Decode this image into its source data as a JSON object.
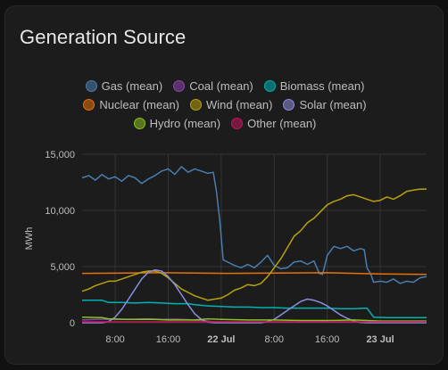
{
  "card": {
    "title": "Generation Source"
  },
  "chart_data": {
    "type": "line",
    "title": "Generation Source",
    "ylabel": "MWh",
    "ylim": [
      0,
      15000
    ],
    "xlim": [
      3.0,
      55.0
    ],
    "y_ticks": [
      {
        "value": 0,
        "label": "0"
      },
      {
        "value": 5000,
        "label": "5,000"
      },
      {
        "value": 10000,
        "label": "10,000"
      },
      {
        "value": 15000,
        "label": "15,000"
      }
    ],
    "x_ticks": [
      {
        "value": 8,
        "label": "8:00",
        "bold": false
      },
      {
        "value": 16,
        "label": "16:00",
        "bold": false
      },
      {
        "value": 24,
        "label": "22 Jul",
        "bold": true
      },
      {
        "value": 32,
        "label": "8:00",
        "bold": false
      },
      {
        "value": 40,
        "label": "16:00",
        "bold": false
      },
      {
        "value": 48,
        "label": "23 Jul",
        "bold": true
      }
    ],
    "series": [
      {
        "name": "Gas (mean)",
        "color": "#4a7db1",
        "points": [
          [
            3,
            12900
          ],
          [
            4,
            13100
          ],
          [
            5,
            12700
          ],
          [
            6,
            13200
          ],
          [
            7,
            12800
          ],
          [
            8,
            13000
          ],
          [
            9,
            12600
          ],
          [
            10,
            13100
          ],
          [
            11,
            12900
          ],
          [
            12,
            12400
          ],
          [
            13,
            12800
          ],
          [
            14,
            13100
          ],
          [
            15,
            13500
          ],
          [
            16,
            13700
          ],
          [
            17,
            13200
          ],
          [
            18,
            13900
          ],
          [
            19,
            13400
          ],
          [
            20,
            13700
          ],
          [
            21,
            13500
          ],
          [
            22,
            13300
          ],
          [
            22.8,
            13400
          ],
          [
            23.3,
            11600
          ],
          [
            23.8,
            9000
          ],
          [
            24.3,
            5600
          ],
          [
            25,
            5400
          ],
          [
            26,
            5100
          ],
          [
            27,
            4900
          ],
          [
            28,
            5200
          ],
          [
            29,
            4900
          ],
          [
            30,
            5400
          ],
          [
            31,
            6000
          ],
          [
            32,
            5100
          ],
          [
            33,
            4800
          ],
          [
            34,
            4900
          ],
          [
            35,
            5400
          ],
          [
            36,
            5500
          ],
          [
            37,
            5200
          ],
          [
            38,
            5500
          ],
          [
            38.8,
            4400
          ],
          [
            39.3,
            4300
          ],
          [
            40,
            6000
          ],
          [
            41,
            6800
          ],
          [
            42,
            6600
          ],
          [
            43,
            6800
          ],
          [
            44,
            6400
          ],
          [
            45,
            6600
          ],
          [
            45.6,
            6500
          ],
          [
            46,
            4900
          ],
          [
            46.6,
            4300
          ],
          [
            47,
            3600
          ],
          [
            48,
            3700
          ],
          [
            49,
            3600
          ],
          [
            50,
            3900
          ],
          [
            51,
            3500
          ],
          [
            52,
            3700
          ],
          [
            53,
            3600
          ],
          [
            54,
            4000
          ],
          [
            55,
            4100
          ]
        ]
      },
      {
        "name": "Coal (mean)",
        "color": "#8e44ad",
        "points": [
          [
            3,
            250
          ],
          [
            5,
            300
          ],
          [
            7,
            320
          ],
          [
            9,
            300
          ],
          [
            11,
            320
          ],
          [
            13,
            350
          ],
          [
            15,
            300
          ],
          [
            17,
            320
          ],
          [
            19,
            280
          ],
          [
            21,
            200
          ],
          [
            23,
            80
          ],
          [
            25,
            60
          ],
          [
            27,
            60
          ],
          [
            29,
            60
          ],
          [
            31,
            60
          ],
          [
            33,
            60
          ],
          [
            35,
            60
          ],
          [
            37,
            60
          ],
          [
            39,
            60
          ],
          [
            41,
            60
          ],
          [
            43,
            60
          ],
          [
            45,
            60
          ],
          [
            47,
            60
          ],
          [
            49,
            60
          ],
          [
            51,
            60
          ],
          [
            53,
            60
          ],
          [
            55,
            60
          ]
        ]
      },
      {
        "name": "Biomass (mean)",
        "color": "#00b2b3",
        "points": [
          [
            3,
            2000
          ],
          [
            6,
            2000
          ],
          [
            7,
            1800
          ],
          [
            9,
            1800
          ],
          [
            11,
            1750
          ],
          [
            13,
            1800
          ],
          [
            15,
            1750
          ],
          [
            17,
            1700
          ],
          [
            19,
            1700
          ],
          [
            20,
            1600
          ],
          [
            22,
            1500
          ],
          [
            24,
            1450
          ],
          [
            26,
            1400
          ],
          [
            28,
            1400
          ],
          [
            30,
            1350
          ],
          [
            32,
            1350
          ],
          [
            34,
            1300
          ],
          [
            36,
            1300
          ],
          [
            38,
            1300
          ],
          [
            40,
            1300
          ],
          [
            42,
            1250
          ],
          [
            44,
            1250
          ],
          [
            46,
            1300
          ],
          [
            47,
            500
          ],
          [
            49,
            450
          ],
          [
            51,
            450
          ],
          [
            53,
            450
          ],
          [
            55,
            450
          ]
        ]
      },
      {
        "name": "Nuclear (mean)",
        "color": "#e8710a",
        "points": [
          [
            3,
            4400
          ],
          [
            15,
            4450
          ],
          [
            25,
            4400
          ],
          [
            40,
            4450
          ],
          [
            48,
            4350
          ],
          [
            55,
            4300
          ]
        ]
      },
      {
        "name": "Wind (mean)",
        "color": "#b8a20b",
        "points": [
          [
            3,
            2800
          ],
          [
            4,
            3000
          ],
          [
            5,
            3300
          ],
          [
            6,
            3500
          ],
          [
            7,
            3700
          ],
          [
            8,
            3700
          ],
          [
            9,
            3900
          ],
          [
            10,
            4100
          ],
          [
            11,
            4300
          ],
          [
            12,
            4500
          ],
          [
            13,
            4600
          ],
          [
            14,
            4600
          ],
          [
            15,
            4400
          ],
          [
            16,
            4000
          ],
          [
            17,
            3500
          ],
          [
            18,
            3000
          ],
          [
            19,
            2700
          ],
          [
            20,
            2400
          ],
          [
            21,
            2200
          ],
          [
            22,
            2000
          ],
          [
            23,
            2100
          ],
          [
            24,
            2200
          ],
          [
            25,
            2500
          ],
          [
            26,
            2900
          ],
          [
            27,
            3100
          ],
          [
            28,
            3400
          ],
          [
            29,
            3300
          ],
          [
            30,
            3500
          ],
          [
            31,
            4100
          ],
          [
            32,
            4900
          ],
          [
            33,
            5700
          ],
          [
            34,
            6700
          ],
          [
            35,
            7700
          ],
          [
            36,
            8200
          ],
          [
            37,
            8900
          ],
          [
            38,
            9300
          ],
          [
            39,
            9900
          ],
          [
            40,
            10500
          ],
          [
            41,
            10800
          ],
          [
            42,
            11000
          ],
          [
            43,
            11300
          ],
          [
            44,
            11400
          ],
          [
            45,
            11200
          ],
          [
            46,
            11000
          ],
          [
            47,
            10800
          ],
          [
            48,
            10900
          ],
          [
            49,
            11200
          ],
          [
            50,
            11000
          ],
          [
            51,
            11300
          ],
          [
            52,
            11700
          ],
          [
            53,
            11800
          ],
          [
            54,
            11900
          ],
          [
            55,
            11900
          ]
        ]
      },
      {
        "name": "Solar (mean)",
        "color": "#8c8ee0",
        "points": [
          [
            3,
            0
          ],
          [
            6,
            0
          ],
          [
            7,
            100
          ],
          [
            8,
            500
          ],
          [
            9,
            1200
          ],
          [
            10,
            2100
          ],
          [
            11,
            3000
          ],
          [
            12,
            3900
          ],
          [
            13,
            4500
          ],
          [
            14,
            4700
          ],
          [
            15,
            4600
          ],
          [
            16,
            4100
          ],
          [
            17,
            3400
          ],
          [
            18,
            2500
          ],
          [
            19,
            1600
          ],
          [
            20,
            800
          ],
          [
            21,
            300
          ],
          [
            22,
            50
          ],
          [
            23,
            0
          ],
          [
            30,
            0
          ],
          [
            31,
            100
          ],
          [
            32,
            300
          ],
          [
            33,
            700
          ],
          [
            34,
            1100
          ],
          [
            35,
            1500
          ],
          [
            36,
            1900
          ],
          [
            37,
            2100
          ],
          [
            38,
            2000
          ],
          [
            39,
            1800
          ],
          [
            40,
            1500
          ],
          [
            41,
            1100
          ],
          [
            42,
            700
          ],
          [
            43,
            400
          ],
          [
            44,
            150
          ],
          [
            45,
            30
          ],
          [
            46,
            0
          ],
          [
            55,
            0
          ]
        ]
      },
      {
        "name": "Hydro (mean)",
        "color": "#8cc120",
        "points": [
          [
            3,
            500
          ],
          [
            6,
            450
          ],
          [
            7,
            350
          ],
          [
            10,
            300
          ],
          [
            14,
            300
          ],
          [
            16,
            250
          ],
          [
            20,
            250
          ],
          [
            22,
            350
          ],
          [
            24,
            300
          ],
          [
            28,
            250
          ],
          [
            32,
            250
          ],
          [
            36,
            200
          ],
          [
            40,
            200
          ],
          [
            44,
            250
          ],
          [
            48,
            150
          ],
          [
            52,
            150
          ],
          [
            55,
            150
          ]
        ]
      },
      {
        "name": "Other (mean)",
        "color": "#c2185b",
        "points": [
          [
            3,
            80
          ],
          [
            10,
            80
          ],
          [
            20,
            80
          ],
          [
            30,
            80
          ],
          [
            40,
            80
          ],
          [
            50,
            80
          ],
          [
            55,
            80
          ]
        ]
      }
    ]
  }
}
